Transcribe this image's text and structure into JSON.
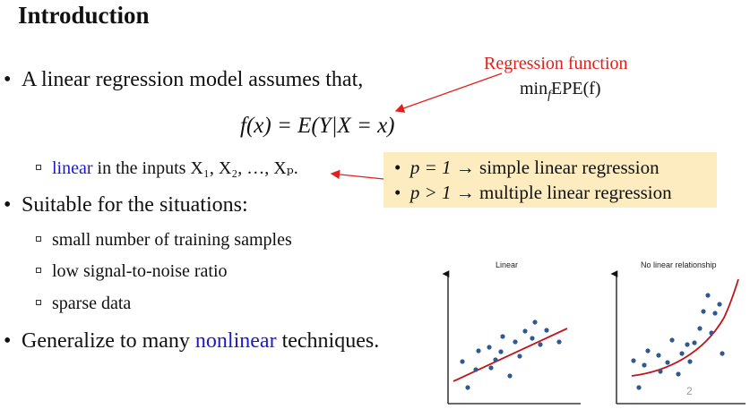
{
  "slide": {
    "title": "Introduction",
    "page_number": "2"
  },
  "bullets": {
    "b1": "A linear regression model assumes that,",
    "b2": "Suitable for the situations:",
    "b3_pre": "Generalize to many ",
    "b3_link": "nonlinear",
    "b3_post": " techniques."
  },
  "formula": {
    "lhs": "f(x) = E(Y|X = x)"
  },
  "regression_note": {
    "label": "Regression function",
    "min": "min",
    "sub": "f",
    "expr": "EPE(f)"
  },
  "linear_item": {
    "word": "linear",
    "rest": " in the inputs X₁, X₂, …, Xₚ."
  },
  "sub_items": [
    "small number of training samples",
    "low signal-to-noise ratio",
    "sparse data"
  ],
  "yellow_box": {
    "line1_math": "p = 1",
    "line1_text": " → simple linear regression",
    "line2_math": "p > 1",
    "line2_text": " → multiple linear regression"
  },
  "plots": {
    "left_title": "Linear",
    "right_title": "No linear relationship"
  },
  "colors": {
    "red": "#e0201b",
    "blue": "#1a1acc",
    "highlight": "#fdecc0",
    "point": "#2f5a8f",
    "fit": "#c0141b"
  }
}
